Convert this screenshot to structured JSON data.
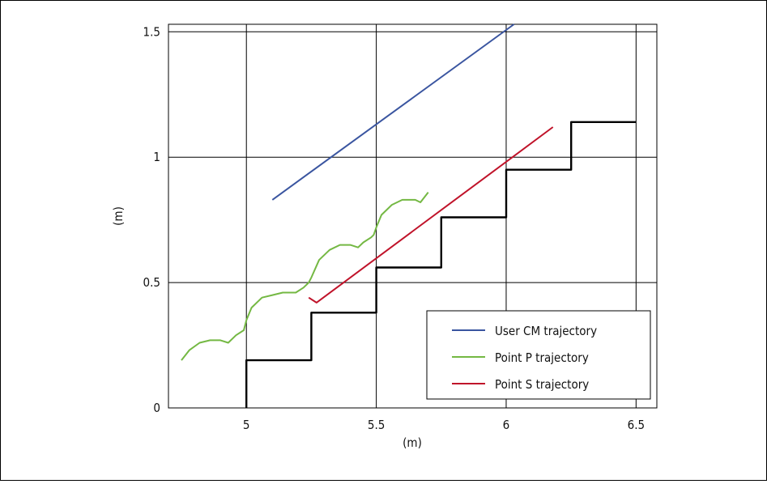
{
  "chart_data": {
    "type": "line",
    "xlabel": "(m)",
    "ylabel": "(m)",
    "xlim": [
      4.7,
      6.58
    ],
    "ylim": [
      0,
      1.53
    ],
    "xticks": [
      5,
      5.5,
      6,
      6.5
    ],
    "xtick_labels": [
      "5",
      "5.5",
      "6",
      "6.5"
    ],
    "yticks": [
      0,
      0.5,
      1,
      1.5
    ],
    "ytick_labels": [
      "0",
      "0.5",
      "1",
      "1.5"
    ],
    "grid": true,
    "legend_position": "bottom-right",
    "series": [
      {
        "name": "User CM trajectory",
        "color": "#3a55a0",
        "x": [
          5.1,
          6.03
        ],
        "y": [
          0.83,
          1.53
        ]
      },
      {
        "name": "Point P trajectory",
        "color": "#74b843",
        "x": [
          4.75,
          4.78,
          4.82,
          4.86,
          4.9,
          4.93,
          4.96,
          4.99,
          5.0,
          5.02,
          5.06,
          5.1,
          5.14,
          5.17,
          5.19,
          5.22,
          5.24,
          5.25,
          5.28,
          5.32,
          5.36,
          5.4,
          5.43,
          5.45,
          5.48,
          5.49,
          5.5,
          5.52,
          5.56,
          5.6,
          5.63,
          5.65,
          5.67,
          5.7
        ],
        "y": [
          0.19,
          0.23,
          0.26,
          0.27,
          0.27,
          0.26,
          0.29,
          0.31,
          0.35,
          0.4,
          0.44,
          0.45,
          0.46,
          0.46,
          0.46,
          0.48,
          0.5,
          0.52,
          0.59,
          0.63,
          0.65,
          0.65,
          0.64,
          0.66,
          0.68,
          0.69,
          0.72,
          0.77,
          0.81,
          0.83,
          0.83,
          0.83,
          0.82,
          0.86
        ]
      },
      {
        "name": "Point S trajectory",
        "color": "#c0132a",
        "x": [
          5.24,
          5.27,
          6.18
        ],
        "y": [
          0.44,
          0.42,
          1.12
        ]
      },
      {
        "name": "",
        "color": "#000000",
        "x": [
          5.0,
          5.0,
          5.25,
          5.25,
          5.5,
          5.5,
          5.75,
          5.75,
          6.0,
          6.0,
          6.25,
          6.25,
          6.5
        ],
        "y": [
          0.0,
          0.19,
          0.19,
          0.38,
          0.38,
          0.56,
          0.56,
          0.76,
          0.76,
          0.95,
          0.95,
          1.14,
          1.14
        ]
      }
    ]
  }
}
